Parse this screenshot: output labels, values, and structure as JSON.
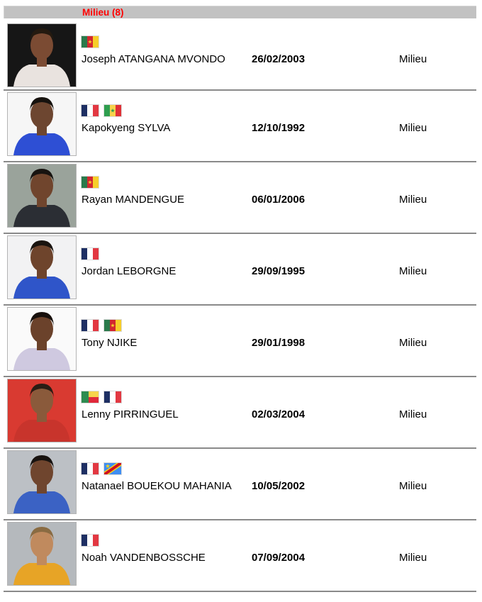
{
  "section": {
    "title": "Milieu (8)",
    "title_color": "#ff0000",
    "bar_color": "#c2c2c2"
  },
  "players": [
    {
      "name": "Joseph ATANGANA MVONDO",
      "dob": "26/02/2003",
      "position": "Milieu",
      "flags": [
        "flag-cameroon"
      ],
      "photo": {
        "bg": "#161616",
        "shirt": "#e9e3df",
        "skin": "#7b4b33",
        "hair": "#241a10"
      }
    },
    {
      "name": "Kapokyeng SYLVA",
      "dob": "12/10/1992",
      "position": "Milieu",
      "flags": [
        "flag-france",
        "flag-senegal"
      ],
      "photo": {
        "bg": "#f6f6f6",
        "shirt": "#2e4fd4",
        "skin": "#6d4630",
        "hair": "#16120e"
      }
    },
    {
      "name": "Rayan MANDENGUE",
      "dob": "06/01/2006",
      "position": "Milieu",
      "flags": [
        "flag-cameroon"
      ],
      "photo": {
        "bg": "#9aa39b",
        "shirt": "#2b2e34",
        "skin": "#70452d",
        "hair": "#171310"
      }
    },
    {
      "name": "Jordan LEBORGNE",
      "dob": "29/09/1995",
      "position": "Milieu",
      "flags": [
        "flag-france"
      ],
      "photo": {
        "bg": "#f2f2f3",
        "shirt": "#2f55c9",
        "skin": "#6e442c",
        "hair": "#1a140f"
      }
    },
    {
      "name": "Tony NJIKE",
      "dob": "29/01/1998",
      "position": "Milieu",
      "flags": [
        "flag-france",
        "flag-cameroon"
      ],
      "photo": {
        "bg": "#fafafa",
        "shirt": "#cfc9e0",
        "skin": "#6b422b",
        "hair": "#17100c"
      }
    },
    {
      "name": "Lenny PIRRINGUEL",
      "dob": "02/03/2004",
      "position": "Milieu",
      "flags": [
        "flag-benin",
        "flag-france"
      ],
      "photo": {
        "bg": "#d93a31",
        "shirt": "#c8342c",
        "skin": "#8a5a3b",
        "hair": "#2a1d14"
      }
    },
    {
      "name": "Natanael BOUEKOU MAHANIA",
      "dob": "10/05/2002",
      "position": "Milieu",
      "flags": [
        "flag-france",
        "flag-dr-congo"
      ],
      "photo": {
        "bg": "#bcc0c5",
        "shirt": "#3b62c4",
        "skin": "#6f452e",
        "hair": "#181310"
      }
    },
    {
      "name": "Noah VANDENBOSSCHE",
      "dob": "07/09/2004",
      "position": "Milieu",
      "flags": [
        "flag-france"
      ],
      "photo": {
        "bg": "#b5b9bd",
        "shirt": "#e7a426",
        "skin": "#c08a5e",
        "hair": "#8a6b42"
      }
    }
  ]
}
